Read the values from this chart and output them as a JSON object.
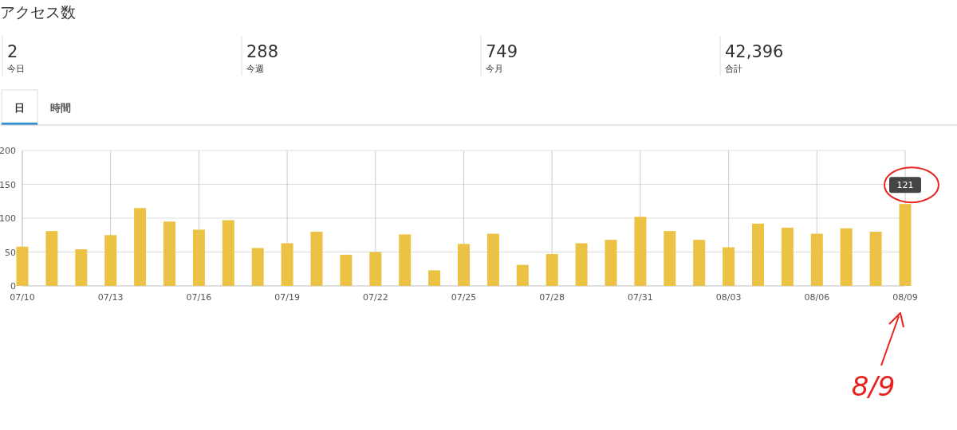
{
  "chart_data": [
    {
      "type": "other",
      "title": "アクセス数",
      "categories": [
        "今日",
        "今週",
        "今月",
        "合計"
      ],
      "annotations": [
        "2",
        "288",
        "749",
        "42,396",
        "日",
        "時間"
      ]
    },
    {
      "type": "bar",
      "categories": [
        "07/10",
        null,
        null,
        "07/13",
        null,
        null,
        "07/16",
        null,
        null,
        "07/19",
        null,
        null,
        "07/22",
        null,
        null,
        "07/25",
        null,
        null,
        "07/28",
        null,
        null,
        "07/31",
        null,
        null,
        "08/03",
        null,
        null,
        "08/06",
        null,
        null,
        "08/09"
      ],
      "values": [
        58,
        81,
        54,
        75,
        115,
        95,
        83,
        97,
        56,
        63,
        80,
        46,
        50,
        76,
        23,
        62,
        77,
        31,
        47,
        63,
        68,
        102,
        81,
        68,
        57,
        92,
        86,
        77,
        85,
        80,
        121
      ],
      "value_labels": [
        null,
        null,
        null,
        null,
        null,
        null,
        null,
        null,
        null,
        null,
        null,
        null,
        null,
        null,
        null,
        null,
        null,
        null,
        null,
        null,
        null,
        null,
        null,
        null,
        null,
        null,
        null,
        null,
        null,
        null,
        "121"
      ],
      "color": "#ecc244",
      "ylim": [
        0,
        200
      ],
      "yticks": [
        0,
        50,
        100,
        150,
        200
      ],
      "grid": true,
      "annotations": [
        "8/9"
      ]
    }
  ]
}
